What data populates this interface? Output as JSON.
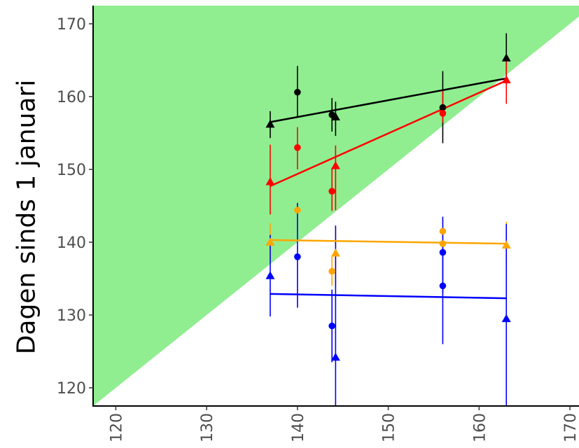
{
  "chart_data": {
    "type": "scatter",
    "title": "",
    "xlabel": "",
    "ylabel": "Dagen sinds 1 januari",
    "xlim": [
      117.5,
      171
    ],
    "ylim": [
      117.5,
      172.5
    ],
    "x_ticks": [
      120,
      130,
      140,
      150,
      160,
      170
    ],
    "y_ticks": [
      120,
      130,
      140,
      150,
      160,
      170
    ],
    "grid": false,
    "legend": "none",
    "shaded_region": {
      "description": "area above y = x",
      "color": "#90EE90"
    },
    "series": [
      {
        "color": "#000000",
        "points": [
          {
            "x": 137,
            "y": 156.2,
            "err_low": 154.3,
            "err_high": 158.0,
            "marker": "triangle"
          },
          {
            "x": 140,
            "y": 160.6,
            "err_low": 157.2,
            "err_high": 164.2,
            "marker": "circle"
          },
          {
            "x": 143.8,
            "y": 157.5,
            "err_low": 155.2,
            "err_high": 159.8,
            "marker": "circle"
          },
          {
            "x": 144.2,
            "y": 157.2,
            "err_low": 154.6,
            "err_high": 159.3,
            "marker": "triangle"
          },
          {
            "x": 156,
            "y": 158.5,
            "err_low": 153.6,
            "err_high": 163.5,
            "marker": "circle"
          },
          {
            "x": 163,
            "y": 165.3,
            "err_low": 162.0,
            "err_high": 168.7,
            "marker": "triangle"
          }
        ],
        "trend": {
          "x": [
            137,
            163
          ],
          "y": [
            156.5,
            162.5
          ]
        }
      },
      {
        "color": "#FF0000",
        "points": [
          {
            "x": 137,
            "y": 148.3,
            "err_low": 143.8,
            "err_high": 153.4,
            "marker": "triangle"
          },
          {
            "x": 140,
            "y": 153.0,
            "err_low": 150.0,
            "err_high": 155.8,
            "marker": "circle"
          },
          {
            "x": 143.8,
            "y": 147.0,
            "err_low": 144.3,
            "err_high": 150.2,
            "marker": "circle"
          },
          {
            "x": 144.2,
            "y": 150.5,
            "err_low": 144.4,
            "err_high": 153.3,
            "marker": "triangle"
          },
          {
            "x": 156,
            "y": 157.7,
            "err_low": 156.4,
            "err_high": 161.0,
            "marker": "circle"
          },
          {
            "x": 163,
            "y": 162.3,
            "err_low": 159.0,
            "err_high": 165.3,
            "marker": "triangle"
          }
        ],
        "trend": {
          "x": [
            137,
            163
          ],
          "y": [
            147.7,
            162.2
          ]
        }
      },
      {
        "color": "#FFA500",
        "points": [
          {
            "x": 137,
            "y": 140.0,
            "err_low": 137.5,
            "err_high": 142.6,
            "marker": "triangle"
          },
          {
            "x": 140,
            "y": 144.4,
            "err_low": 141.8,
            "err_high": 145.4,
            "marker": "circle"
          },
          {
            "x": 143.8,
            "y": 136.0,
            "err_low": 134.0,
            "err_high": 138.0,
            "marker": "circle"
          },
          {
            "x": 144.2,
            "y": 138.5,
            "err_low": 134.0,
            "err_high": 142.0,
            "marker": "triangle"
          },
          {
            "x": 156,
            "y": 141.5,
            "err_low": 139.5,
            "err_high": 143.2,
            "marker": "circle"
          },
          {
            "x": 156,
            "y": 139.8,
            "err_low": 138.0,
            "err_high": 141.5,
            "marker": "circle"
          },
          {
            "x": 163,
            "y": 139.6,
            "err_low": 136.8,
            "err_high": 142.8,
            "marker": "triangle"
          }
        ],
        "trend": {
          "x": [
            137,
            163
          ],
          "y": [
            140.3,
            139.8
          ]
        }
      },
      {
        "color": "#0000FF",
        "points": [
          {
            "x": 137,
            "y": 135.4,
            "err_low": 129.8,
            "err_high": 141.0,
            "marker": "triangle"
          },
          {
            "x": 140,
            "y": 138.0,
            "err_low": 131.0,
            "err_high": 145.4,
            "marker": "circle"
          },
          {
            "x": 143.8,
            "y": 128.5,
            "err_low": 123.5,
            "err_high": 133.5,
            "marker": "circle"
          },
          {
            "x": 144.2,
            "y": 124.2,
            "err_low": 117.5,
            "err_high": 142.3,
            "marker": "triangle"
          },
          {
            "x": 156,
            "y": 138.6,
            "err_low": 133.0,
            "err_high": 143.5,
            "marker": "circle"
          },
          {
            "x": 156,
            "y": 134.0,
            "err_low": 126.0,
            "err_high": 140.0,
            "marker": "circle"
          },
          {
            "x": 163,
            "y": 129.5,
            "err_low": 117.5,
            "err_high": 142.5,
            "marker": "triangle"
          }
        ],
        "trend": {
          "x": [
            137,
            163
          ],
          "y": [
            132.9,
            132.3
          ]
        }
      }
    ]
  }
}
